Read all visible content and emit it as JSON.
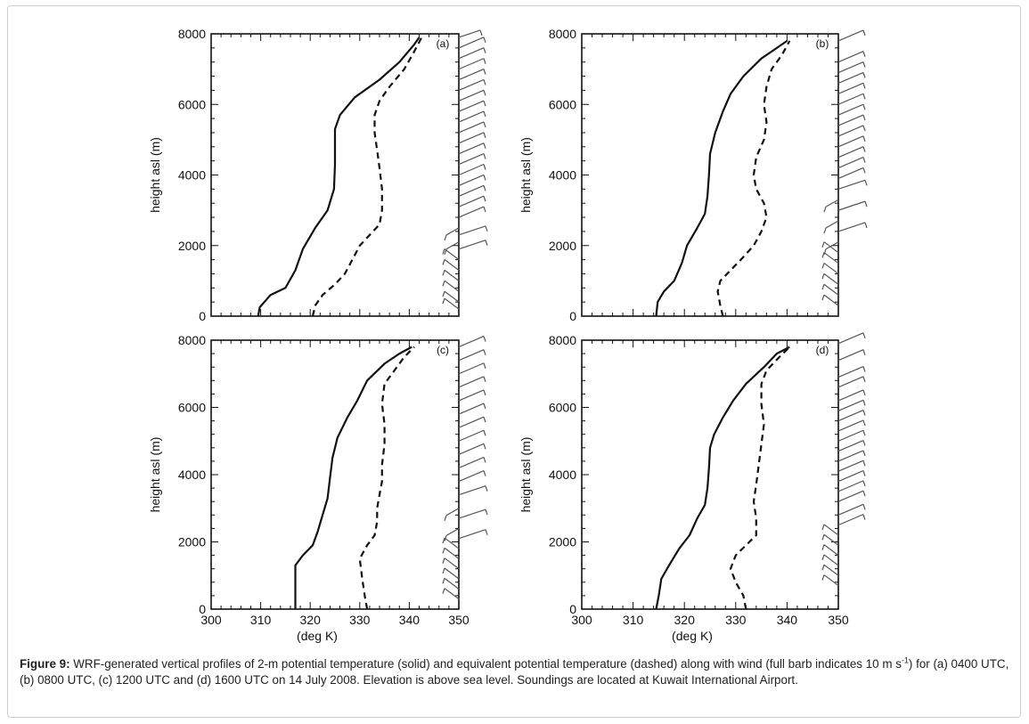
{
  "chart_data": [
    {
      "panel": "(a)",
      "type": "line",
      "ylabel": "height asl (m)",
      "xlabel": "",
      "xlim": [
        300,
        350
      ],
      "ylim": [
        0,
        8000
      ],
      "x_ticks": [],
      "y_ticks": [
        "0",
        "2000",
        "4000",
        "6000",
        "8000"
      ],
      "series": [
        {
          "style": "solid",
          "color": "#111111",
          "points": [
            [
              309.5,
              0
            ],
            [
              309.8,
              250
            ],
            [
              312,
              600
            ],
            [
              315,
              800
            ],
            [
              317,
              1300
            ],
            [
              318.5,
              1900
            ],
            [
              321,
              2500
            ],
            [
              323.5,
              3000
            ],
            [
              324.8,
              3600
            ],
            [
              325,
              4300
            ],
            [
              325,
              4800
            ],
            [
              325,
              5300
            ],
            [
              326,
              5700
            ],
            [
              329,
              6200
            ],
            [
              334,
              6700
            ],
            [
              338,
              7200
            ],
            [
              341,
              7700
            ],
            [
              342,
              7900
            ]
          ]
        },
        {
          "style": "dashed",
          "color": "#111111",
          "points": [
            [
              320.5,
              0
            ],
            [
              321,
              300
            ],
            [
              322.5,
              600
            ],
            [
              325,
              900
            ],
            [
              327,
              1200
            ],
            [
              328.5,
              1600
            ],
            [
              330,
              2000
            ],
            [
              332,
              2300
            ],
            [
              334,
              2600
            ],
            [
              334.5,
              3000
            ],
            [
              334.5,
              3600
            ],
            [
              334,
              4200
            ],
            [
              333.5,
              4700
            ],
            [
              333,
              5200
            ],
            [
              333,
              5700
            ],
            [
              334,
              6100
            ],
            [
              336,
              6500
            ],
            [
              339,
              7000
            ],
            [
              341,
              7500
            ],
            [
              342.5,
              7900
            ]
          ]
        }
      ],
      "wind_barbs": [
        {
          "h": 7900,
          "dir": "up-right"
        },
        {
          "h": 7600,
          "dir": "right"
        },
        {
          "h": 7300,
          "dir": "right"
        },
        {
          "h": 7000,
          "dir": "right"
        },
        {
          "h": 6700,
          "dir": "right"
        },
        {
          "h": 6400,
          "dir": "right"
        },
        {
          "h": 6100,
          "dir": "right"
        },
        {
          "h": 5800,
          "dir": "right"
        },
        {
          "h": 5500,
          "dir": "right"
        },
        {
          "h": 5200,
          "dir": "right"
        },
        {
          "h": 4900,
          "dir": "right"
        },
        {
          "h": 4600,
          "dir": "right"
        },
        {
          "h": 4300,
          "dir": "right"
        },
        {
          "h": 4000,
          "dir": "right"
        },
        {
          "h": 3700,
          "dir": "right"
        },
        {
          "h": 3400,
          "dir": "right"
        },
        {
          "h": 3100,
          "dir": "right"
        },
        {
          "h": 2800,
          "dir": "right"
        },
        {
          "h": 2500,
          "dir": "mixed"
        },
        {
          "h": 2300,
          "dir": "mixed"
        },
        {
          "h": 2100,
          "dir": "mixed"
        },
        {
          "h": 1900,
          "dir": "mixed"
        },
        {
          "h": 1600,
          "dir": "left"
        },
        {
          "h": 1300,
          "dir": "left"
        },
        {
          "h": 1000,
          "dir": "left"
        },
        {
          "h": 700,
          "dir": "left"
        },
        {
          "h": 400,
          "dir": "left"
        },
        {
          "h": 200,
          "dir": "left"
        }
      ]
    },
    {
      "panel": "(b)",
      "type": "line",
      "ylabel": "height asl (m)",
      "xlabel": "",
      "xlim": [
        300,
        350
      ],
      "ylim": [
        0,
        8000
      ],
      "x_ticks": [],
      "y_ticks": [
        "0",
        "2000",
        "4000",
        "6000",
        "8000"
      ],
      "series": [
        {
          "style": "solid",
          "color": "#111111",
          "points": [
            [
              314.5,
              0
            ],
            [
              314.8,
              400
            ],
            [
              316,
              700
            ],
            [
              318,
              1000
            ],
            [
              319.5,
              1500
            ],
            [
              320.5,
              2000
            ],
            [
              322.5,
              2500
            ],
            [
              324,
              2900
            ],
            [
              324.5,
              3400
            ],
            [
              324.8,
              4000
            ],
            [
              325,
              4600
            ],
            [
              326,
              5200
            ],
            [
              327.5,
              5800
            ],
            [
              329,
              6300
            ],
            [
              331.5,
              6800
            ],
            [
              335,
              7300
            ],
            [
              338,
              7600
            ],
            [
              340,
              7800
            ]
          ]
        },
        {
          "style": "dashed",
          "color": "#111111",
          "points": [
            [
              327.5,
              0
            ],
            [
              327,
              300
            ],
            [
              326.5,
              700
            ],
            [
              327,
              1000
            ],
            [
              329,
              1300
            ],
            [
              331,
              1600
            ],
            [
              333.5,
              2000
            ],
            [
              335,
              2400
            ],
            [
              336,
              2800
            ],
            [
              335.5,
              3200
            ],
            [
              334,
              3600
            ],
            [
              333.5,
              4000
            ],
            [
              334,
              4500
            ],
            [
              335.5,
              5000
            ],
            [
              336,
              5500
            ],
            [
              335.5,
              6000
            ],
            [
              336,
              6500
            ],
            [
              337,
              7000
            ],
            [
              339,
              7400
            ],
            [
              340.5,
              7800
            ]
          ]
        }
      ],
      "wind_barbs": [
        {
          "h": 7800,
          "dir": "right"
        },
        {
          "h": 7200,
          "dir": "right"
        },
        {
          "h": 6900,
          "dir": "right"
        },
        {
          "h": 6600,
          "dir": "right"
        },
        {
          "h": 6300,
          "dir": "right"
        },
        {
          "h": 6000,
          "dir": "right"
        },
        {
          "h": 5700,
          "dir": "right"
        },
        {
          "h": 5400,
          "dir": "right"
        },
        {
          "h": 5100,
          "dir": "right"
        },
        {
          "h": 4800,
          "dir": "right"
        },
        {
          "h": 4500,
          "dir": "right"
        },
        {
          "h": 4200,
          "dir": "right"
        },
        {
          "h": 3900,
          "dir": "right"
        },
        {
          "h": 3600,
          "dir": "mixed"
        },
        {
          "h": 3300,
          "dir": "mixed"
        },
        {
          "h": 3000,
          "dir": "mixed"
        },
        {
          "h": 2700,
          "dir": "mixed"
        },
        {
          "h": 2400,
          "dir": "mixed"
        },
        {
          "h": 2100,
          "dir": "mixed"
        },
        {
          "h": 1800,
          "dir": "left"
        },
        {
          "h": 1500,
          "dir": "left"
        },
        {
          "h": 1200,
          "dir": "left"
        },
        {
          "h": 900,
          "dir": "left"
        },
        {
          "h": 600,
          "dir": "left"
        },
        {
          "h": 300,
          "dir": "left"
        }
      ]
    },
    {
      "panel": "(c)",
      "type": "line",
      "ylabel": "height asl (m)",
      "xlabel": "(deg K)",
      "xlim": [
        300,
        350
      ],
      "ylim": [
        0,
        8000
      ],
      "x_ticks": [
        "300",
        "310",
        "320",
        "330",
        "340",
        "350"
      ],
      "y_ticks": [
        "0",
        "2000",
        "4000",
        "6000",
        "8000"
      ],
      "series": [
        {
          "style": "solid",
          "color": "#111111",
          "points": [
            [
              317,
              0
            ],
            [
              317,
              500
            ],
            [
              317,
              1300
            ],
            [
              318.5,
              1600
            ],
            [
              320.5,
              1900
            ],
            [
              321.5,
              2300
            ],
            [
              322.5,
              2800
            ],
            [
              323.5,
              3300
            ],
            [
              324,
              3900
            ],
            [
              324.5,
              4500
            ],
            [
              325.5,
              5100
            ],
            [
              327.5,
              5700
            ],
            [
              329.5,
              6200
            ],
            [
              331.5,
              6800
            ],
            [
              335,
              7300
            ],
            [
              338,
              7600
            ],
            [
              340.5,
              7800
            ]
          ]
        },
        {
          "style": "dashed",
          "color": "#111111",
          "points": [
            [
              331.5,
              0
            ],
            [
              331,
              400
            ],
            [
              330.5,
              900
            ],
            [
              330,
              1500
            ],
            [
              331.5,
              1900
            ],
            [
              333,
              2200
            ],
            [
              333.5,
              2600
            ],
            [
              333.5,
              3000
            ],
            [
              334,
              3400
            ],
            [
              334.5,
              3800
            ],
            [
              334.5,
              4300
            ],
            [
              335,
              4900
            ],
            [
              335,
              5500
            ],
            [
              334.5,
              6100
            ],
            [
              335,
              6700
            ],
            [
              337,
              7100
            ],
            [
              339,
              7500
            ],
            [
              341,
              7800
            ]
          ]
        }
      ],
      "wind_barbs": [
        {
          "h": 7800,
          "dir": "right"
        },
        {
          "h": 7400,
          "dir": "right"
        },
        {
          "h": 7000,
          "dir": "right"
        },
        {
          "h": 6600,
          "dir": "right"
        },
        {
          "h": 6200,
          "dir": "right"
        },
        {
          "h": 5800,
          "dir": "right"
        },
        {
          "h": 5400,
          "dir": "right"
        },
        {
          "h": 5000,
          "dir": "right"
        },
        {
          "h": 4600,
          "dir": "right"
        },
        {
          "h": 4200,
          "dir": "right"
        },
        {
          "h": 3800,
          "dir": "right"
        },
        {
          "h": 3400,
          "dir": "mixed"
        },
        {
          "h": 3000,
          "dir": "mixed"
        },
        {
          "h": 2700,
          "dir": "mixed"
        },
        {
          "h": 2400,
          "dir": "mixed"
        },
        {
          "h": 2100,
          "dir": "mixed"
        },
        {
          "h": 1800,
          "dir": "left"
        },
        {
          "h": 1500,
          "dir": "left"
        },
        {
          "h": 1200,
          "dir": "left"
        },
        {
          "h": 900,
          "dir": "left"
        },
        {
          "h": 600,
          "dir": "left"
        },
        {
          "h": 300,
          "dir": "left"
        }
      ]
    },
    {
      "panel": "(d)",
      "type": "line",
      "ylabel": "height asl (m)",
      "xlabel": "(deg K)",
      "xlim": [
        300,
        350
      ],
      "ylim": [
        0,
        8000
      ],
      "x_ticks": [
        "300",
        "310",
        "320",
        "330",
        "340",
        "350"
      ],
      "y_ticks": [
        "0",
        "2000",
        "4000",
        "6000",
        "8000"
      ],
      "series": [
        {
          "style": "solid",
          "color": "#111111",
          "points": [
            [
              314.5,
              0
            ],
            [
              315,
              400
            ],
            [
              315.5,
              900
            ],
            [
              317,
              1300
            ],
            [
              319,
              1800
            ],
            [
              321,
              2200
            ],
            [
              322.5,
              2700
            ],
            [
              324,
              3100
            ],
            [
              324.5,
              3600
            ],
            [
              324.8,
              4200
            ],
            [
              325,
              4800
            ],
            [
              325.8,
              5200
            ],
            [
              327.5,
              5700
            ],
            [
              329.5,
              6200
            ],
            [
              332,
              6700
            ],
            [
              335.5,
              7200
            ],
            [
              338,
              7600
            ],
            [
              340.5,
              7800
            ]
          ]
        },
        {
          "style": "dashed",
          "color": "#111111",
          "points": [
            [
              332,
              0
            ],
            [
              331.5,
              400
            ],
            [
              330,
              800
            ],
            [
              329,
              1200
            ],
            [
              330,
              1600
            ],
            [
              332,
              1900
            ],
            [
              334,
              2200
            ],
            [
              334,
              2700
            ],
            [
              333.5,
              3200
            ],
            [
              334,
              3700
            ],
            [
              334.5,
              4300
            ],
            [
              335,
              4900
            ],
            [
              335.5,
              5500
            ],
            [
              335,
              6100
            ],
            [
              335,
              6700
            ],
            [
              336,
              7100
            ],
            [
              338.5,
              7500
            ],
            [
              340.5,
              7800
            ]
          ]
        }
      ],
      "wind_barbs": [
        {
          "h": 7900,
          "dir": "right"
        },
        {
          "h": 7400,
          "dir": "right"
        },
        {
          "h": 6900,
          "dir": "right"
        },
        {
          "h": 6600,
          "dir": "right"
        },
        {
          "h": 6200,
          "dir": "right"
        },
        {
          "h": 5900,
          "dir": "right"
        },
        {
          "h": 5600,
          "dir": "right"
        },
        {
          "h": 5300,
          "dir": "right"
        },
        {
          "h": 5000,
          "dir": "right"
        },
        {
          "h": 4700,
          "dir": "right"
        },
        {
          "h": 4400,
          "dir": "right"
        },
        {
          "h": 4100,
          "dir": "right"
        },
        {
          "h": 3800,
          "dir": "right"
        },
        {
          "h": 3500,
          "dir": "right"
        },
        {
          "h": 3200,
          "dir": "right"
        },
        {
          "h": 2800,
          "dir": "right"
        },
        {
          "h": 2500,
          "dir": "right"
        },
        {
          "h": 2200,
          "dir": "left"
        },
        {
          "h": 1900,
          "dir": "left"
        },
        {
          "h": 1600,
          "dir": "left"
        },
        {
          "h": 1300,
          "dir": "left"
        },
        {
          "h": 1000,
          "dir": "left"
        },
        {
          "h": 700,
          "dir": "left"
        }
      ]
    }
  ],
  "caption": {
    "label": "Figure 9:",
    "text_before_sup": " WRF-generated vertical profiles of 2-m potential temperature (solid) and equivalent potential temperature (dashed) along with wind (full barb indicates 10 m s",
    "sup": "-1",
    "text_after_sup": ") for (a) 0400 UTC, (b) 0800 UTC, (c) 1200 UTC and (d) 1600 UTC on 14 July 2008. Elevation is above sea level. Soundings are located at Kuwait International Airport."
  }
}
